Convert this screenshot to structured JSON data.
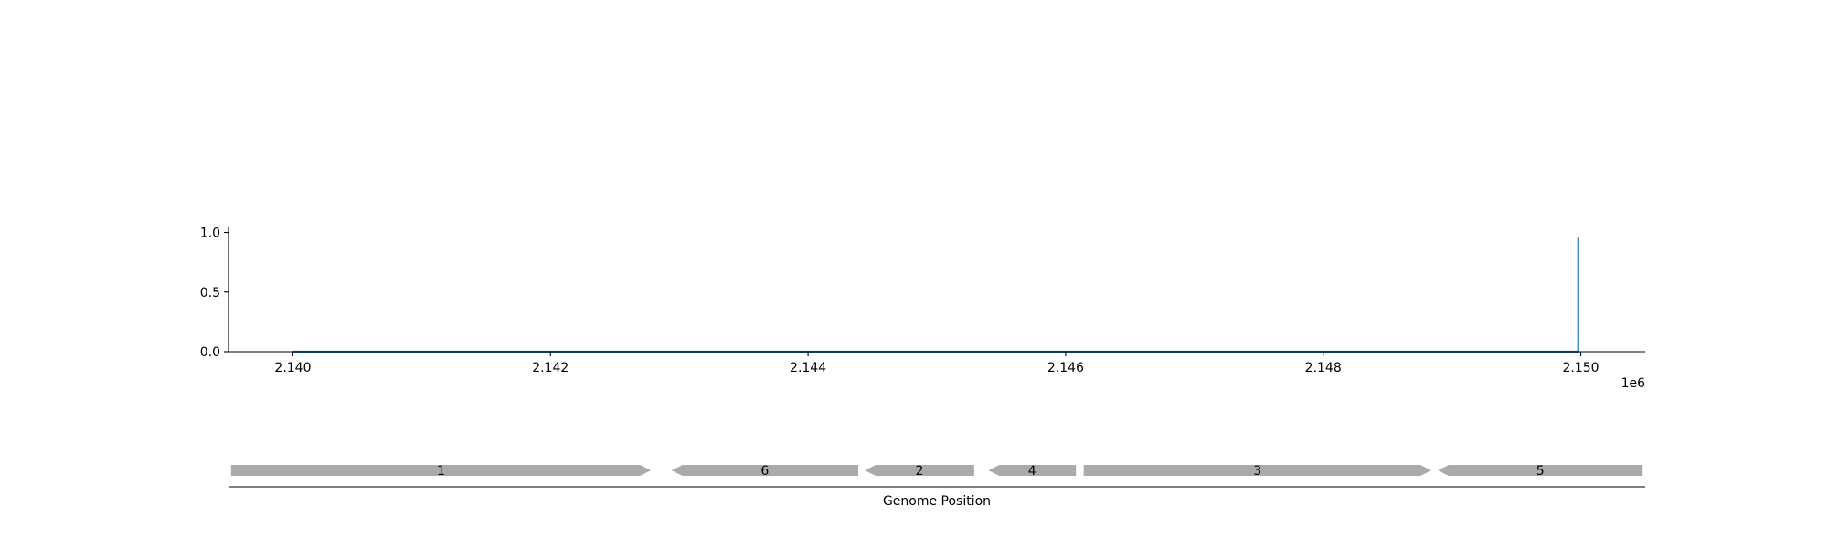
{
  "chart_data": [
    {
      "type": "line",
      "xlim": [
        2139500,
        2150500
      ],
      "ylim": [
        0.0,
        1.05
      ],
      "x_ticks": [
        2140000,
        2142000,
        2144000,
        2146000,
        2148000,
        2150000
      ],
      "x_tick_labels": [
        "2.140",
        "2.142",
        "2.144",
        "2.146",
        "2.148",
        "2.150"
      ],
      "x_offset_label": "1e6",
      "y_ticks": [
        0.0,
        0.5,
        1.0
      ],
      "y_tick_labels": [
        "0.0",
        "0.5",
        "1.0"
      ],
      "grid": false,
      "series_color": "#1f77b4",
      "series": [
        {
          "x": [
            2140000,
            2149980,
            2149980,
            2149980,
            2149990
          ],
          "y": [
            0.0,
            0.0,
            0.95,
            0.0,
            0.0
          ]
        }
      ]
    },
    {
      "type": "gene-track",
      "xlabel": "Genome Position",
      "xlim": [
        2139500,
        2150500
      ],
      "gene_color": "#aaaaaa",
      "genes": [
        {
          "label": "1",
          "start": 2139520,
          "end": 2142780,
          "strand": "+"
        },
        {
          "label": "6",
          "start": 2142940,
          "end": 2144390,
          "strand": "-"
        },
        {
          "label": "2",
          "start": 2144440,
          "end": 2145290,
          "strand": "-"
        },
        {
          "label": "4",
          "start": 2145400,
          "end": 2146080,
          "strand": "-"
        },
        {
          "label": "3",
          "start": 2146140,
          "end": 2148840,
          "strand": "+"
        },
        {
          "label": "5",
          "start": 2148890,
          "end": 2150480,
          "strand": "-"
        }
      ]
    }
  ]
}
